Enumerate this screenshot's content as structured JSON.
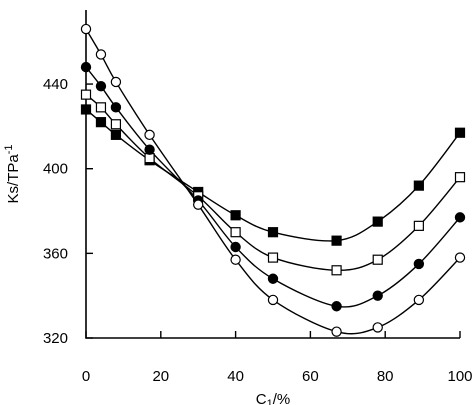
{
  "chart_data": {
    "type": "scatter",
    "title": "",
    "xlabel": {
      "main": "C",
      "sub": "1",
      "unit": "/%"
    },
    "ylabel": {
      "main": "Ks/TPa",
      "sup": "-1"
    },
    "xlim": [
      0,
      100
    ],
    "ylim": [
      320,
      475
    ],
    "xticks": [
      0,
      20,
      40,
      60,
      80,
      100
    ],
    "yticks": [
      320,
      360,
      400,
      440
    ],
    "grid": false,
    "legend": "none",
    "x": [
      0,
      4,
      8,
      17,
      30,
      40,
      50,
      67,
      78,
      89,
      100
    ],
    "series": [
      {
        "marker": "filled-square",
        "values": [
          428,
          422,
          416,
          404,
          389,
          378,
          370,
          366,
          375,
          392,
          417
        ]
      },
      {
        "marker": "open-square",
        "values": [
          435,
          429,
          421,
          405,
          387,
          370,
          358,
          352,
          357,
          373,
          396
        ]
      },
      {
        "marker": "filled-circle",
        "values": [
          448,
          439,
          429,
          409,
          385,
          363,
          348,
          335,
          340,
          355,
          377
        ]
      },
      {
        "marker": "open-circle",
        "values": [
          466,
          454,
          441,
          416,
          383,
          357,
          338,
          323,
          325,
          338,
          358
        ]
      }
    ]
  }
}
